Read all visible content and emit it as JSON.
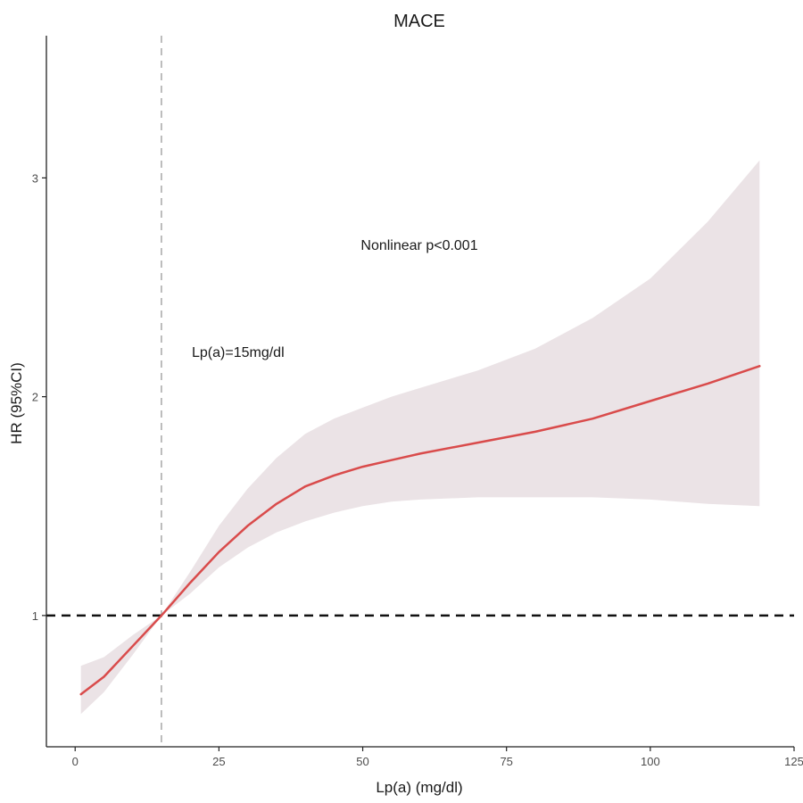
{
  "chart_data": {
    "type": "line",
    "title": "MACE",
    "xlabel": "Lp(a) (mg/dl)",
    "ylabel": "HR (95%CI)",
    "xlim": [
      -5,
      125
    ],
    "ylim": [
      0.4,
      3.65
    ],
    "x_ticks": [
      0,
      25,
      50,
      75,
      100,
      125
    ],
    "y_ticks": [
      1,
      2,
      3
    ],
    "grid": false,
    "reference_lines": {
      "hr_reference": 1,
      "lpa_reference": 15
    },
    "annotations": {
      "nonlinear_p": "Nonlinear p<0.001",
      "lpa_cutoff": "Lp(a)=15mg/dl"
    },
    "series": [
      {
        "x": [
          1,
          5,
          10,
          15,
          20,
          25,
          30,
          35,
          40,
          45,
          50,
          55,
          60,
          70,
          80,
          90,
          100,
          110,
          119
        ],
        "hr": [
          0.64,
          0.72,
          0.86,
          1.0,
          1.15,
          1.29,
          1.41,
          1.51,
          1.59,
          1.64,
          1.68,
          1.71,
          1.74,
          1.79,
          1.84,
          1.9,
          1.98,
          2.06,
          2.14
        ],
        "lower": [
          0.55,
          0.65,
          0.82,
          1.0,
          1.1,
          1.22,
          1.31,
          1.38,
          1.43,
          1.47,
          1.5,
          1.52,
          1.53,
          1.54,
          1.54,
          1.54,
          1.53,
          1.51,
          1.5
        ],
        "upper": [
          0.77,
          0.81,
          0.91,
          1.0,
          1.2,
          1.41,
          1.58,
          1.72,
          1.83,
          1.9,
          1.95,
          2.0,
          2.04,
          2.12,
          2.22,
          2.36,
          2.54,
          2.8,
          3.08
        ]
      }
    ],
    "colors": {
      "curve": "#d94b4b",
      "band": "#ebe3e6",
      "axis": "#222222",
      "hr_reference_line": "#111111",
      "lpa_reference_line": "#a8a8a8"
    }
  }
}
